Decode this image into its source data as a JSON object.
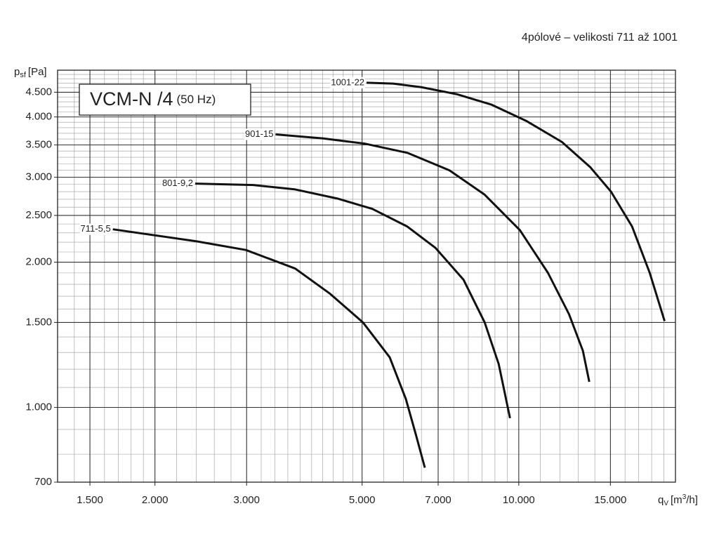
{
  "chart_data": {
    "type": "line",
    "title": "4pólové – velikosti 711 až 1001",
    "box_title": "VCM-N /4",
    "box_subtitle": "(50 Hz)",
    "y_label": {
      "main": "p",
      "sub": "sf",
      "unit": "[Pa]"
    },
    "x_label": {
      "main": "q",
      "sub": "V",
      "unit": "[m",
      "sup": "3",
      "unit_end": "/h]"
    },
    "log_x": true,
    "log_y": true,
    "grid": true,
    "xlim": [
      1300,
      20000
    ],
    "ylim": [
      700,
      5000
    ],
    "xticks": [
      {
        "value": 1500,
        "label": "1.500"
      },
      {
        "value": 2000,
        "label": "2.000"
      },
      {
        "value": 3000,
        "label": "3.000"
      },
      {
        "value": 5000,
        "label": "5.000"
      },
      {
        "value": 7000,
        "label": "7.000"
      },
      {
        "value": 10000,
        "label": "10.000"
      },
      {
        "value": 15000,
        "label": "15.000"
      }
    ],
    "yticks": [
      700,
      {
        "value": 1000,
        "label": "1.000"
      },
      {
        "value": 1500,
        "label": "1.500"
      },
      {
        "value": 2000,
        "label": "2.000"
      },
      {
        "value": 2500,
        "label": "2.500"
      },
      {
        "value": 3000,
        "label": "3.000"
      },
      {
        "value": 3500,
        "label": "3.500"
      },
      {
        "value": 4000,
        "label": "4.000"
      },
      {
        "value": 4500,
        "label": "4.500"
      }
    ],
    "x_minor": [
      1400,
      1600,
      1700,
      1800,
      1900,
      2200,
      2400,
      2600,
      2800,
      3200,
      3400,
      3600,
      3800,
      4000,
      4200,
      4400,
      4600,
      4800,
      5500,
      6000,
      6500,
      7500,
      8000,
      8500,
      9000,
      9500,
      11000,
      12000,
      13000,
      14000,
      16000,
      17000,
      18000,
      19000
    ],
    "y_minor": [
      800,
      900,
      1100,
      1200,
      1300,
      1400,
      1600,
      1700,
      1800,
      1900,
      2100,
      2200,
      2300,
      2400,
      2600,
      2700,
      2800,
      2900,
      3100,
      3200,
      3300,
      3400,
      3600,
      3700,
      3800,
      3900,
      4100,
      4200,
      4300,
      4400,
      4600,
      4700,
      4800,
      4900
    ],
    "series": [
      {
        "name": "711-5,5",
        "color": "#111111",
        "x": [
          1660,
          2400,
          2990,
          3720,
          4340,
          5020,
          5650,
          6070,
          6340,
          6600
        ],
        "values": [
          2340,
          2210,
          2120,
          1940,
          1720,
          1500,
          1270,
          1040,
          880,
          750
        ]
      },
      {
        "name": "801-9,2",
        "color": "#111111",
        "x": [
          2390,
          3090,
          3720,
          4480,
          5230,
          6110,
          6920,
          7830,
          8600,
          9150,
          9620
        ],
        "values": [
          2910,
          2890,
          2830,
          2710,
          2580,
          2370,
          2140,
          1840,
          1500,
          1230,
          950
        ]
      },
      {
        "name": "901-15",
        "color": "#111111",
        "x": [
          3410,
          4210,
          5070,
          6110,
          7360,
          8600,
          10050,
          11380,
          12490,
          13280,
          13660
        ],
        "values": [
          3680,
          3610,
          3520,
          3370,
          3100,
          2760,
          2330,
          1900,
          1560,
          1310,
          1130
        ]
      },
      {
        "name": "1001-22",
        "color": "#111111",
        "x": [
          5100,
          5740,
          6500,
          7590,
          8870,
          10360,
          12100,
          13710,
          15040,
          16510,
          17850,
          19060
        ],
        "values": [
          4710,
          4690,
          4610,
          4460,
          4240,
          3920,
          3550,
          3150,
          2800,
          2370,
          1900,
          1510
        ]
      }
    ]
  }
}
